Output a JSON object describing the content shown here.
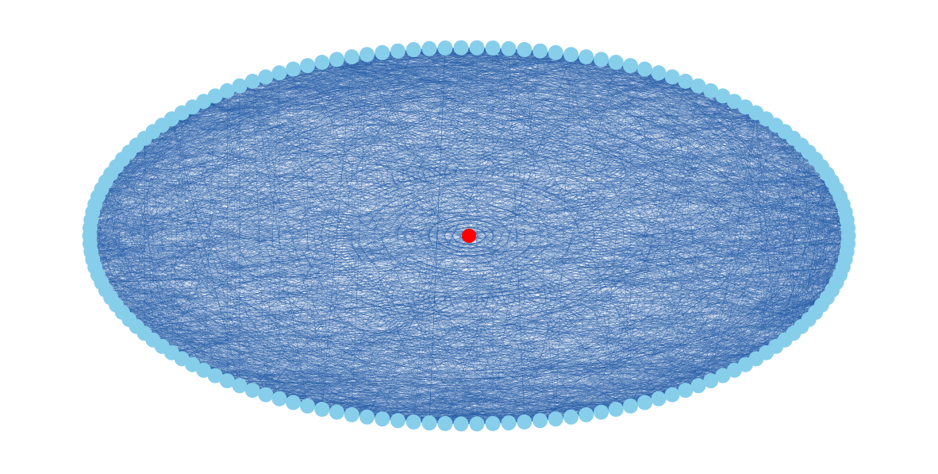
{
  "graph": {
    "layout": "circular",
    "outer_node_count": 150,
    "center_node_count": 1,
    "edge_count": 5600,
    "colors": {
      "outer_node": "#87ceeb",
      "center_node": "#ff0000",
      "edge": "#1f5aa6",
      "background": "#ffffff"
    }
  }
}
